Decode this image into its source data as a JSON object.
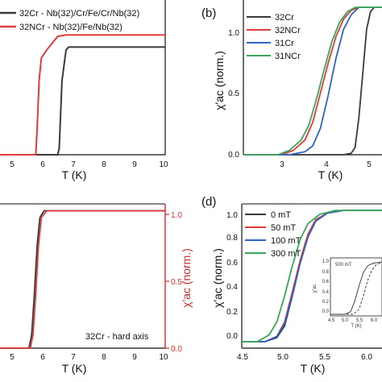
{
  "figure": {
    "colors": {
      "black": "#3a3a3a",
      "red": "#e03a3a",
      "blue": "#2e63c9",
      "green": "#3aa85a",
      "axis_red": "#d92b2b"
    }
  },
  "chart_data": [
    {
      "id": "a",
      "type": "line",
      "xlabel": "T (K)",
      "xlim": [
        4,
        10
      ],
      "x_ticks": [
        "5",
        "6",
        "7",
        "8",
        "9",
        "10"
      ],
      "ylim": [
        0,
        1.15
      ],
      "legend": {
        "placement": "top-left",
        "entries": [
          "32Cr - Nb(32)/Cr/Fe/Cr/Nb(32)",
          "32NCr - Nb(32)/Fe/Nb(32)"
        ]
      },
      "series": [
        {
          "name": "32Cr - Nb(32)/Cr/Fe/Cr/Nb(32)",
          "color": "#3a3a3a",
          "x": [
            4.0,
            6.1,
            6.15,
            6.25,
            6.4,
            6.5,
            6.7,
            7.0,
            10.0
          ],
          "y": [
            0.0,
            0.0,
            0.05,
            0.55,
            0.78,
            0.8,
            0.8,
            0.8,
            0.8
          ]
        },
        {
          "name": "32NCr - Nb(32)/Fe/Nb(32)",
          "color": "#e03a3a",
          "x": [
            4.0,
            5.3,
            5.35,
            5.42,
            5.5,
            5.7,
            5.9,
            6.1,
            6.4,
            10.0
          ],
          "y": [
            0.0,
            0.0,
            0.2,
            0.55,
            0.72,
            0.78,
            0.83,
            0.88,
            0.89,
            0.89
          ]
        }
      ]
    },
    {
      "id": "b",
      "tag": "(b)",
      "type": "line",
      "xlabel": "T (K)",
      "ylabel": "χ'ac (norm.)",
      "xlim": [
        2.2,
        5.8
      ],
      "x_ticks": [
        3,
        4,
        5
      ],
      "ylim": [
        0,
        1.05
      ],
      "y_ticks": [
        "0.0",
        "0.5",
        "1.0"
      ],
      "legend": {
        "placement": "top-left",
        "entries": [
          "32Cr",
          "32NCr",
          "31Cr",
          "31NCr"
        ]
      },
      "series": [
        {
          "name": "32Cr",
          "color": "#3a3a3a",
          "x": [
            2.2,
            4.8,
            5.0,
            5.1,
            5.2,
            5.3,
            5.4,
            5.5,
            5.6,
            5.8
          ],
          "y": [
            0.0,
            0.0,
            0.01,
            0.05,
            0.25,
            0.55,
            0.85,
            0.97,
            1.0,
            1.0
          ]
        },
        {
          "name": "32NCr",
          "color": "#e03a3a",
          "x": [
            2.2,
            3.2,
            3.5,
            3.8,
            4.0,
            4.2,
            4.4,
            4.6,
            4.8,
            5.0,
            5.2,
            5.8
          ],
          "y": [
            0.0,
            0.0,
            0.03,
            0.1,
            0.22,
            0.42,
            0.62,
            0.8,
            0.92,
            0.98,
            1.0,
            1.0
          ]
        },
        {
          "name": "31Cr",
          "color": "#2e63c9",
          "x": [
            2.2,
            3.4,
            3.8,
            4.0,
            4.2,
            4.4,
            4.6,
            4.8,
            5.0,
            5.2,
            5.8
          ],
          "y": [
            0.0,
            0.0,
            0.02,
            0.06,
            0.18,
            0.4,
            0.65,
            0.85,
            0.95,
            1.0,
            1.0
          ]
        },
        {
          "name": "31NCr",
          "color": "#3aa85a",
          "x": [
            2.2,
            3.1,
            3.4,
            3.7,
            3.9,
            4.1,
            4.3,
            4.5,
            4.7,
            4.9,
            5.1,
            5.8
          ],
          "y": [
            0.0,
            0.0,
            0.03,
            0.1,
            0.2,
            0.38,
            0.58,
            0.77,
            0.9,
            0.97,
            1.0,
            1.0
          ]
        }
      ]
    },
    {
      "id": "c",
      "type": "line",
      "xlabel": "T (K)",
      "xlim": [
        4,
        10
      ],
      "x_ticks": [
        "5",
        "6",
        "7",
        "8",
        "9",
        "10"
      ],
      "ylabel_right": "χ'ac (norm.)",
      "ylim": [
        0,
        1.05
      ],
      "y_ticks_right": [
        "0.0",
        "0.5",
        "1.0"
      ],
      "annotation": "32Cr - hard axis",
      "series": [
        {
          "color": "#3a3a3a",
          "x": [
            4.0,
            5.05,
            5.15,
            5.25,
            5.35,
            5.45,
            5.6,
            10.0
          ],
          "y": [
            0.0,
            0.0,
            0.1,
            0.4,
            0.75,
            0.95,
            1.0,
            1.0
          ]
        },
        {
          "color": "#e03a3a",
          "x": [
            4.0,
            5.1,
            5.2,
            5.3,
            5.4,
            5.5,
            5.7,
            10.0
          ],
          "y": [
            0.0,
            0.0,
            0.1,
            0.4,
            0.75,
            0.95,
            1.0,
            1.0
          ]
        }
      ]
    },
    {
      "id": "d",
      "tag": "(d)",
      "type": "line",
      "xlabel": "T (K)",
      "ylabel": "χ'ac (norm.)",
      "xlim": [
        4.5,
        6.3
      ],
      "x_ticks": [
        "4.5",
        "5.0",
        "5.5",
        "6.0"
      ],
      "ylim": [
        -0.05,
        1.05
      ],
      "y_ticks": [
        "0.0",
        "0.2",
        "0.4",
        "0.6",
        "0.8",
        "1.0"
      ],
      "legend": {
        "placement": "top-left",
        "entries": [
          "0 mT",
          "50 mT",
          "100 mT",
          "300 mT"
        ]
      },
      "series": [
        {
          "name": "0 mT",
          "color": "#3a3a3a",
          "x": [
            4.5,
            4.8,
            4.95,
            5.05,
            5.15,
            5.25,
            5.35,
            5.45,
            5.6,
            5.8,
            6.3
          ],
          "y": [
            0.0,
            0.0,
            0.03,
            0.12,
            0.35,
            0.6,
            0.8,
            0.92,
            0.98,
            1.0,
            1.0
          ]
        },
        {
          "name": "50 mT",
          "color": "#e03a3a",
          "x": [
            4.5,
            4.8,
            4.95,
            5.05,
            5.15,
            5.25,
            5.35,
            5.45,
            5.6,
            5.8,
            6.3
          ],
          "y": [
            0.0,
            0.0,
            0.04,
            0.15,
            0.38,
            0.62,
            0.82,
            0.93,
            0.98,
            1.0,
            1.0
          ]
        },
        {
          "name": "100 mT",
          "color": "#2e63c9",
          "x": [
            4.5,
            4.8,
            4.95,
            5.05,
            5.15,
            5.25,
            5.35,
            5.45,
            5.6,
            5.8,
            6.3
          ],
          "y": [
            0.0,
            0.0,
            0.04,
            0.14,
            0.36,
            0.6,
            0.8,
            0.92,
            0.98,
            1.0,
            1.0
          ]
        },
        {
          "name": "300 mT",
          "color": "#3aa85a",
          "x": [
            4.5,
            4.7,
            4.85,
            4.95,
            5.05,
            5.15,
            5.25,
            5.35,
            5.5,
            5.7,
            6.3
          ],
          "y": [
            0.0,
            0.0,
            0.05,
            0.15,
            0.35,
            0.58,
            0.78,
            0.9,
            0.97,
            1.0,
            1.0
          ]
        }
      ],
      "inset": {
        "label": "500 mT",
        "x_ticks": [
          "4.5",
          "5.0",
          "5.5",
          "6.0"
        ],
        "y_ticks": [
          "0.0",
          "0.2",
          "0.4",
          "0.6",
          "0.8",
          "1.0"
        ],
        "xlabel": "T (K)",
        "ylabel": "χ'ac",
        "xlim": [
          4.5,
          6.3
        ],
        "ylim": [
          0,
          1.05
        ],
        "series": [
          {
            "color": "#333333",
            "dash": "none",
            "x": [
              4.5,
              5.0,
              5.2,
              5.35,
              5.5,
              5.65,
              5.8,
              6.0,
              6.3
            ],
            "y": [
              0.0,
              0.0,
              0.05,
              0.25,
              0.55,
              0.8,
              0.93,
              0.98,
              1.0
            ]
          },
          {
            "color": "#333333",
            "dash": "3,2",
            "x": [
              4.5,
              5.3,
              5.5,
              5.65,
              5.8,
              5.95,
              6.1,
              6.3
            ],
            "y": [
              0.0,
              0.0,
              0.1,
              0.35,
              0.65,
              0.85,
              0.95,
              1.0
            ]
          }
        ]
      }
    }
  ]
}
